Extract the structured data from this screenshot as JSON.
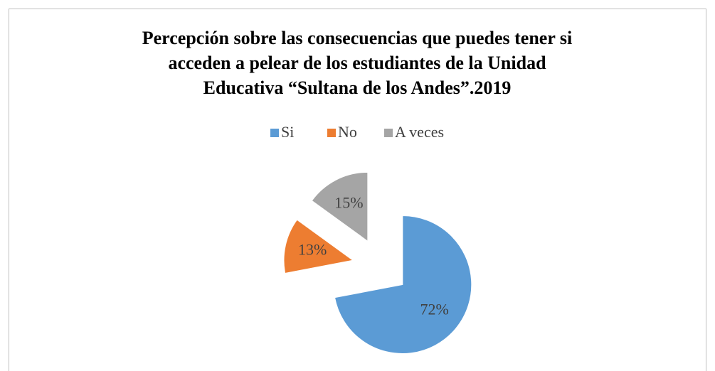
{
  "chart_data": {
    "type": "pie",
    "title": [
      "Percepción sobre las consecuencias que puedes tener si",
      "acceden a pelear de los estudiantes de la Unidad",
      "Educativa “Sultana de los Andes”.2019"
    ],
    "categories": [
      "Si",
      "No",
      "A veces"
    ],
    "values": [
      72,
      13,
      15
    ],
    "value_labels": [
      "72%",
      "13%",
      "15%"
    ],
    "colors": [
      "#5b9bd5",
      "#ed7d31",
      "#a5a5a5"
    ],
    "legend": "top"
  }
}
